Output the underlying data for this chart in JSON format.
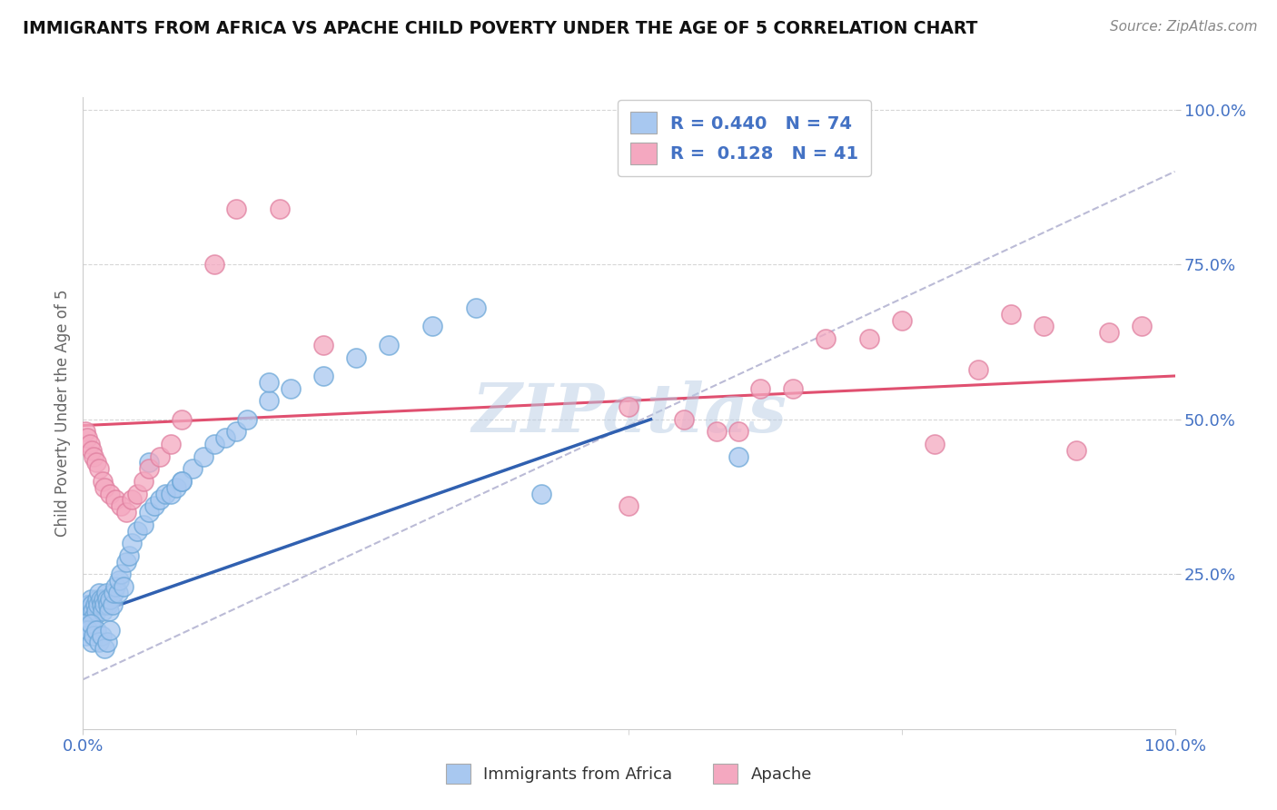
{
  "title": "IMMIGRANTS FROM AFRICA VS APACHE CHILD POVERTY UNDER THE AGE OF 5 CORRELATION CHART",
  "source": "Source: ZipAtlas.com",
  "ylabel": "Child Poverty Under the Age of 5",
  "series1_label": "Immigrants from Africa",
  "series2_label": "Apache",
  "legend_r1": "R = 0.440",
  "legend_n1": "N = 74",
  "legend_r2": "R =  0.128",
  "legend_n2": "N = 41",
  "color_blue": "#a8c8f0",
  "color_pink": "#f4a8c0",
  "color_blue_border": "#6ea8d8",
  "color_pink_border": "#e080a0",
  "color_blue_line": "#3060b0",
  "color_pink_line": "#e05070",
  "color_gray_dash": "#aaaacc",
  "watermark": "ZIPatlas",
  "background_color": "#ffffff",
  "grid_color": "#cccccc",
  "title_color": "#111111",
  "source_color": "#888888",
  "axis_label_color": "#666666",
  "tick_color": "#4472c4",
  "legend_text_color": "#4472c4",
  "blue_x": [
    0.002,
    0.003,
    0.004,
    0.005,
    0.006,
    0.007,
    0.008,
    0.009,
    0.01,
    0.011,
    0.012,
    0.013,
    0.014,
    0.015,
    0.016,
    0.017,
    0.018,
    0.019,
    0.02,
    0.021,
    0.022,
    0.023,
    0.024,
    0.025,
    0.027,
    0.028,
    0.03,
    0.032,
    0.033,
    0.035,
    0.037,
    0.04,
    0.042,
    0.045,
    0.05,
    0.055,
    0.06,
    0.065,
    0.07,
    0.075,
    0.08,
    0.085,
    0.09,
    0.1,
    0.11,
    0.12,
    0.13,
    0.14,
    0.15,
    0.17,
    0.19,
    0.22,
    0.25,
    0.28,
    0.32,
    0.36,
    0.0,
    0.001,
    0.003,
    0.005,
    0.007,
    0.008,
    0.01,
    0.012,
    0.015,
    0.017,
    0.02,
    0.022,
    0.025,
    0.06,
    0.09,
    0.17,
    0.42,
    0.6
  ],
  "blue_y": [
    0.18,
    0.19,
    0.2,
    0.2,
    0.19,
    0.21,
    0.2,
    0.19,
    0.18,
    0.2,
    0.19,
    0.21,
    0.2,
    0.22,
    0.21,
    0.2,
    0.19,
    0.21,
    0.2,
    0.22,
    0.21,
    0.2,
    0.19,
    0.21,
    0.2,
    0.22,
    0.23,
    0.22,
    0.24,
    0.25,
    0.23,
    0.27,
    0.28,
    0.3,
    0.32,
    0.33,
    0.35,
    0.36,
    0.37,
    0.38,
    0.38,
    0.39,
    0.4,
    0.42,
    0.44,
    0.46,
    0.47,
    0.48,
    0.5,
    0.53,
    0.55,
    0.57,
    0.6,
    0.62,
    0.65,
    0.68,
    0.17,
    0.16,
    0.15,
    0.16,
    0.17,
    0.14,
    0.15,
    0.16,
    0.14,
    0.15,
    0.13,
    0.14,
    0.16,
    0.43,
    0.4,
    0.56,
    0.38,
    0.44
  ],
  "pink_x": [
    0.002,
    0.004,
    0.006,
    0.008,
    0.01,
    0.012,
    0.015,
    0.018,
    0.02,
    0.025,
    0.03,
    0.035,
    0.04,
    0.045,
    0.05,
    0.055,
    0.06,
    0.07,
    0.08,
    0.09,
    0.12,
    0.14,
    0.18,
    0.22,
    0.55,
    0.58,
    0.62,
    0.65,
    0.68,
    0.72,
    0.75,
    0.78,
    0.82,
    0.85,
    0.88,
    0.91,
    0.94,
    0.97,
    0.6,
    0.5,
    0.5
  ],
  "pink_y": [
    0.48,
    0.47,
    0.46,
    0.45,
    0.44,
    0.43,
    0.42,
    0.4,
    0.39,
    0.38,
    0.37,
    0.36,
    0.35,
    0.37,
    0.38,
    0.4,
    0.42,
    0.44,
    0.46,
    0.5,
    0.75,
    0.84,
    0.84,
    0.62,
    0.5,
    0.48,
    0.55,
    0.55,
    0.63,
    0.63,
    0.66,
    0.46,
    0.58,
    0.67,
    0.65,
    0.45,
    0.64,
    0.65,
    0.48,
    0.52,
    0.36
  ]
}
